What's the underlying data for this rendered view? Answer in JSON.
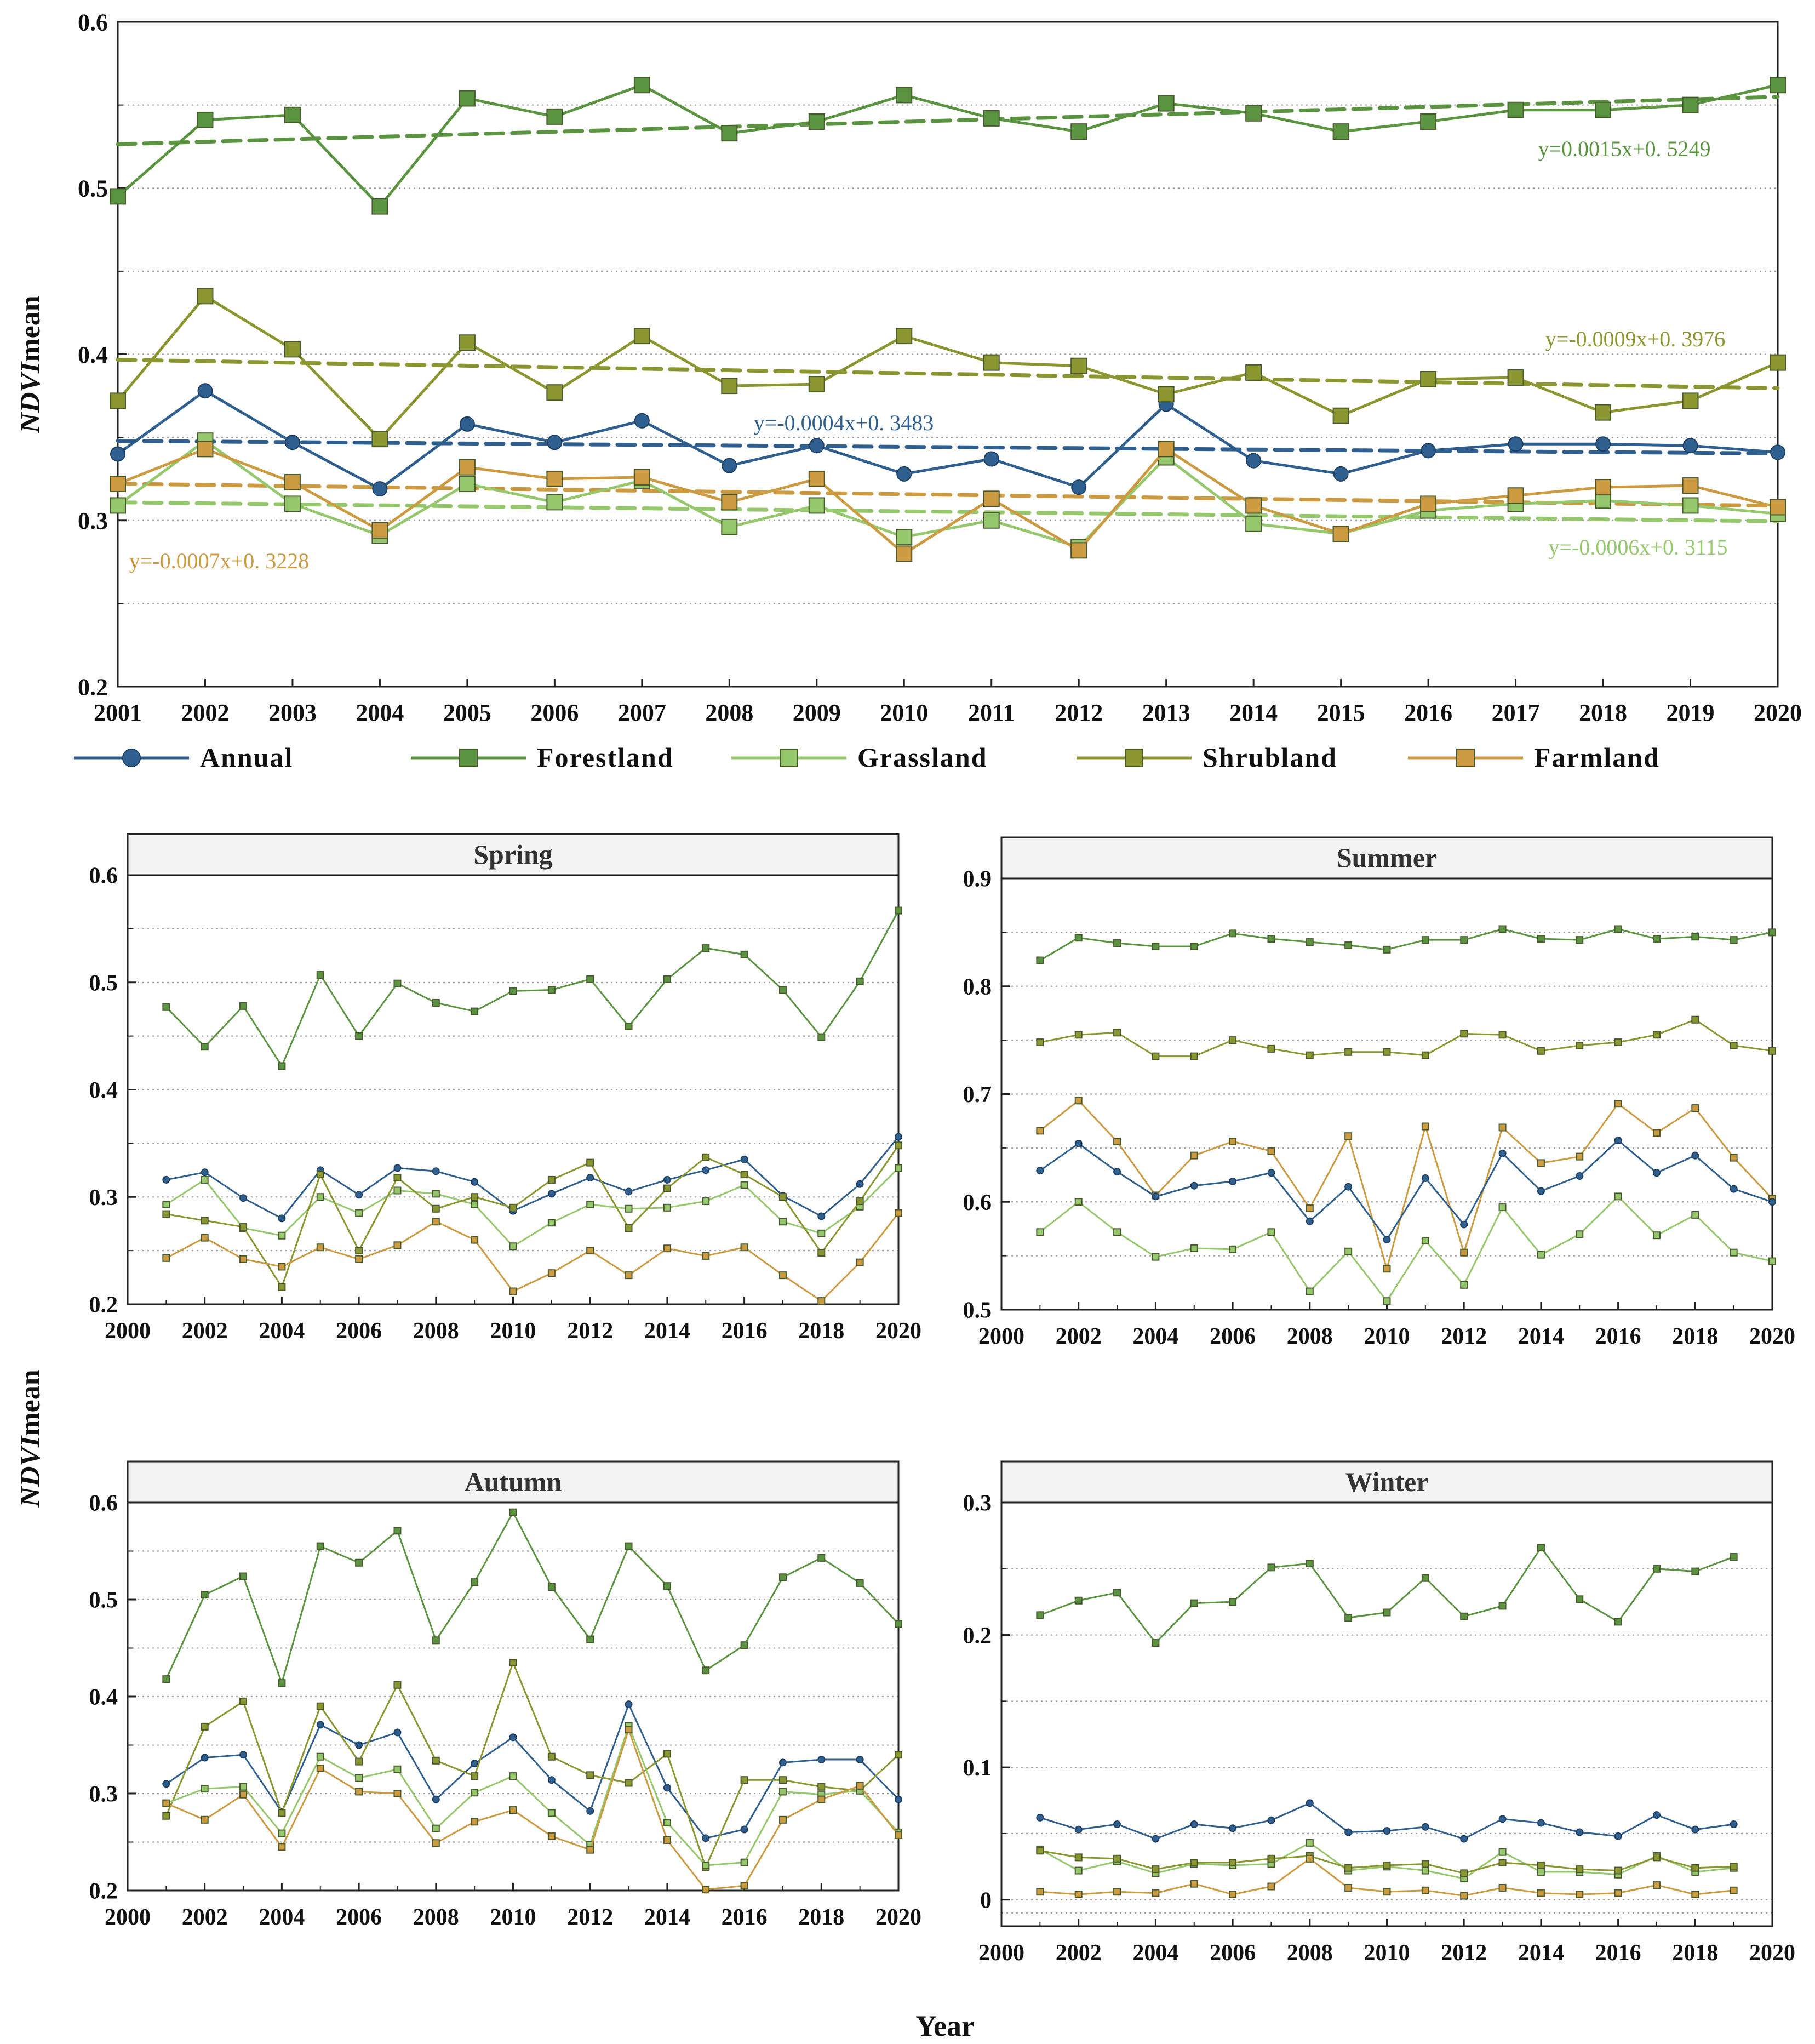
{
  "figure": {
    "y_axis_title_prefix": "NDVI",
    "y_axis_title_suffix": "mean",
    "x_axis_title": "Year"
  },
  "colors": {
    "Annual": "#2f5f8f",
    "Forestland": "#5a9440",
    "Grassland": "#95c86d",
    "Shrubland": "#8c9630",
    "Farmland": "#cc9a40"
  },
  "chart_data": [
    {
      "id": "annual",
      "type": "line",
      "title": "",
      "xlabel": "",
      "ylabel": "NDVImean",
      "xlim": [
        2001,
        2020
      ],
      "ylim": [
        0.2,
        0.6
      ],
      "yticks": [
        0.2,
        0.3,
        0.4,
        0.5,
        0.6
      ],
      "xticks": [
        2001,
        2002,
        2003,
        2004,
        2005,
        2006,
        2007,
        2008,
        2009,
        2010,
        2011,
        2012,
        2013,
        2014,
        2015,
        2016,
        2017,
        2018,
        2019,
        2020
      ],
      "grid": true,
      "legend": [
        "Annual",
        "Forestland",
        "Grassland",
        "Shrubland",
        "Farmland"
      ],
      "x": [
        2001,
        2002,
        2003,
        2004,
        2005,
        2006,
        2007,
        2008,
        2009,
        2010,
        2011,
        2012,
        2013,
        2014,
        2015,
        2016,
        2017,
        2018,
        2019,
        2020
      ],
      "series": [
        {
          "name": "Annual",
          "marker": "circle",
          "values": [
            0.34,
            0.378,
            0.347,
            0.319,
            0.358,
            0.347,
            0.36,
            0.333,
            0.345,
            0.328,
            0.337,
            0.32,
            0.37,
            0.336,
            0.328,
            0.342,
            0.346,
            0.346,
            0.345,
            0.341
          ]
        },
        {
          "name": "Forestland",
          "marker": "square",
          "values": [
            0.495,
            0.541,
            0.544,
            0.489,
            0.554,
            0.543,
            0.562,
            0.533,
            0.54,
            0.556,
            0.542,
            0.534,
            0.551,
            0.545,
            0.534,
            0.54,
            0.547,
            0.547,
            0.55,
            0.562
          ]
        },
        {
          "name": "Grassland",
          "marker": "square",
          "values": [
            0.309,
            0.348,
            0.31,
            0.291,
            0.322,
            0.311,
            0.324,
            0.296,
            0.309,
            0.29,
            0.3,
            0.284,
            0.338,
            0.298,
            0.292,
            0.306,
            0.31,
            0.312,
            0.309,
            0.304
          ]
        },
        {
          "name": "Shrubland",
          "marker": "square",
          "values": [
            0.372,
            0.435,
            0.403,
            0.349,
            0.407,
            0.377,
            0.411,
            0.381,
            0.382,
            0.411,
            0.395,
            0.393,
            0.376,
            0.389,
            0.363,
            0.385,
            0.386,
            0.365,
            0.372,
            0.395
          ]
        },
        {
          "name": "Farmland",
          "marker": "square",
          "values": [
            0.322,
            0.343,
            0.323,
            0.294,
            0.332,
            0.325,
            0.326,
            0.311,
            0.325,
            0.28,
            0.313,
            0.282,
            0.343,
            0.309,
            0.292,
            0.31,
            0.315,
            0.32,
            0.321,
            0.308
          ]
        }
      ],
      "trendlines": [
        {
          "series": "Forestland",
          "label": "y=0.0015x+0. 5249",
          "start": 0.5264,
          "end": 0.5549
        },
        {
          "series": "Shrubland",
          "label": "y=-0.0009x+0. 3976",
          "start": 0.3967,
          "end": 0.3796
        },
        {
          "series": "Annual",
          "label": "y=-0.0004x+0. 3483",
          "start": 0.3479,
          "end": 0.3403
        },
        {
          "series": "Farmland",
          "label": "y=-0.0007x+0. 3228",
          "start": 0.3221,
          "end": 0.3088
        },
        {
          "series": "Grassland",
          "label": "y=-0.0006x+0. 3115",
          "start": 0.3109,
          "end": 0.2995
        }
      ]
    },
    {
      "id": "spring",
      "type": "line",
      "title": "Spring",
      "xlim": [
        2000,
        2020
      ],
      "ylim": [
        0.2,
        0.6
      ],
      "yticks": [
        0.2,
        0.3,
        0.4,
        0.5,
        0.6
      ],
      "xticks": [
        2000,
        2002,
        2004,
        2006,
        2008,
        2010,
        2012,
        2014,
        2016,
        2018,
        2020
      ],
      "grid": true,
      "x": [
        2001,
        2002,
        2003,
        2004,
        2005,
        2006,
        2007,
        2008,
        2009,
        2010,
        2011,
        2012,
        2013,
        2014,
        2015,
        2016,
        2017,
        2018,
        2019,
        2020
      ],
      "series": [
        {
          "name": "Forestland",
          "values": [
            0.477,
            0.44,
            0.478,
            0.422,
            0.507,
            0.45,
            0.499,
            0.481,
            0.473,
            0.492,
            0.493,
            0.503,
            0.459,
            0.503,
            0.532,
            0.526,
            0.493,
            0.449,
            0.501,
            0.567
          ]
        },
        {
          "name": "Annual",
          "values": [
            0.316,
            0.323,
            0.299,
            0.28,
            0.325,
            0.302,
            0.327,
            0.324,
            0.314,
            0.287,
            0.303,
            0.318,
            0.305,
            0.316,
            0.325,
            0.335,
            0.301,
            0.282,
            0.312,
            0.356
          ]
        },
        {
          "name": "Grassland",
          "values": [
            0.293,
            0.316,
            0.271,
            0.264,
            0.3,
            0.285,
            0.306,
            0.303,
            0.293,
            0.254,
            0.276,
            0.293,
            0.289,
            0.29,
            0.296,
            0.311,
            0.277,
            0.266,
            0.291,
            0.327
          ]
        },
        {
          "name": "Shrubland",
          "values": [
            0.284,
            0.278,
            0.272,
            0.216,
            0.321,
            0.25,
            0.318,
            0.289,
            0.3,
            0.29,
            0.316,
            0.332,
            0.271,
            0.308,
            0.337,
            0.321,
            0.3,
            0.248,
            0.296,
            0.348
          ]
        },
        {
          "name": "Farmland",
          "values": [
            0.243,
            0.262,
            0.242,
            0.235,
            0.253,
            0.242,
            0.255,
            0.277,
            0.26,
            0.212,
            0.229,
            0.25,
            0.227,
            0.252,
            0.245,
            0.253,
            0.227,
            0.203,
            0.239,
            0.285
          ]
        }
      ]
    },
    {
      "id": "summer",
      "type": "line",
      "title": "Summer",
      "xlim": [
        2000,
        2020
      ],
      "ylim": [
        0.5,
        0.9
      ],
      "yticks": [
        0.5,
        0.6,
        0.7,
        0.8,
        0.9
      ],
      "xticks": [
        2000,
        2002,
        2004,
        2006,
        2008,
        2010,
        2012,
        2014,
        2016,
        2018,
        2020
      ],
      "grid": true,
      "x": [
        2001,
        2002,
        2003,
        2004,
        2005,
        2006,
        2007,
        2008,
        2009,
        2010,
        2011,
        2012,
        2013,
        2014,
        2015,
        2016,
        2017,
        2018,
        2019,
        2020
      ],
      "series": [
        {
          "name": "Forestland",
          "values": [
            0.824,
            0.845,
            0.84,
            0.837,
            0.837,
            0.849,
            0.844,
            0.841,
            0.838,
            0.834,
            0.843,
            0.843,
            0.853,
            0.844,
            0.843,
            0.853,
            0.844,
            0.846,
            0.843,
            0.85
          ]
        },
        {
          "name": "Shrubland",
          "values": [
            0.748,
            0.755,
            0.757,
            0.735,
            0.735,
            0.75,
            0.742,
            0.736,
            0.739,
            0.739,
            0.736,
            0.756,
            0.755,
            0.74,
            0.745,
            0.748,
            0.755,
            0.769,
            0.745,
            0.74
          ]
        },
        {
          "name": "Farmland",
          "values": [
            0.666,
            0.694,
            0.656,
            0.606,
            0.643,
            0.656,
            0.647,
            0.594,
            0.661,
            0.538,
            0.67,
            0.553,
            0.669,
            0.636,
            0.642,
            0.691,
            0.664,
            0.687,
            0.641,
            0.603
          ]
        },
        {
          "name": "Annual",
          "values": [
            0.629,
            0.654,
            0.628,
            0.605,
            0.615,
            0.619,
            0.627,
            0.582,
            0.614,
            0.565,
            0.622,
            0.579,
            0.645,
            0.61,
            0.624,
            0.657,
            0.627,
            0.643,
            0.612,
            0.6
          ]
        },
        {
          "name": "Grassland",
          "values": [
            0.572,
            0.6,
            0.572,
            0.549,
            0.557,
            0.556,
            0.572,
            0.517,
            0.554,
            0.508,
            0.564,
            0.523,
            0.595,
            0.551,
            0.57,
            0.605,
            0.569,
            0.588,
            0.553,
            0.545
          ]
        }
      ]
    },
    {
      "id": "autumn",
      "type": "line",
      "title": "Autumn",
      "xlim": [
        2000,
        2020
      ],
      "ylim": [
        0.2,
        0.6
      ],
      "yticks": [
        0.2,
        0.3,
        0.4,
        0.5,
        0.6
      ],
      "xticks": [
        2000,
        2002,
        2004,
        2006,
        2008,
        2010,
        2012,
        2014,
        2016,
        2018,
        2020
      ],
      "grid": true,
      "x": [
        2001,
        2002,
        2003,
        2004,
        2005,
        2006,
        2007,
        2008,
        2009,
        2010,
        2011,
        2012,
        2013,
        2014,
        2015,
        2016,
        2017,
        2018,
        2019,
        2020
      ],
      "series": [
        {
          "name": "Forestland",
          "values": [
            0.418,
            0.505,
            0.524,
            0.414,
            0.555,
            0.538,
            0.571,
            0.458,
            0.518,
            0.59,
            0.513,
            0.459,
            0.555,
            0.514,
            0.427,
            0.453,
            0.523,
            0.543,
            0.517,
            0.475
          ]
        },
        {
          "name": "Annual",
          "values": [
            0.31,
            0.337,
            0.34,
            0.281,
            0.371,
            0.35,
            0.363,
            0.294,
            0.331,
            0.358,
            0.314,
            0.282,
            0.392,
            0.306,
            0.254,
            0.263,
            0.332,
            0.335,
            0.335,
            0.294
          ]
        },
        {
          "name": "Shrubland",
          "values": [
            0.277,
            0.369,
            0.395,
            0.28,
            0.39,
            0.333,
            0.412,
            0.334,
            0.318,
            0.435,
            0.338,
            0.319,
            0.311,
            0.341,
            0.224,
            0.314,
            0.314,
            0.307,
            0.303,
            0.34
          ]
        },
        {
          "name": "Grassland",
          "values": [
            0.29,
            0.305,
            0.307,
            0.259,
            0.338,
            0.316,
            0.325,
            0.264,
            0.301,
            0.318,
            0.28,
            0.247,
            0.37,
            0.27,
            0.226,
            0.229,
            0.302,
            0.299,
            0.303,
            0.26
          ]
        },
        {
          "name": "Farmland",
          "values": [
            0.29,
            0.273,
            0.299,
            0.245,
            0.326,
            0.302,
            0.3,
            0.249,
            0.271,
            0.283,
            0.256,
            0.242,
            0.366,
            0.252,
            0.201,
            0.205,
            0.273,
            0.294,
            0.308,
            0.257
          ]
        }
      ]
    },
    {
      "id": "winter",
      "type": "line",
      "title": "Winter",
      "xlim": [
        2000,
        2020
      ],
      "ylim": [
        -0.02,
        0.3
      ],
      "yticks": [
        0,
        0.1,
        0.2,
        0.3
      ],
      "ytick_labels": [
        "0",
        "0.1",
        "0.2",
        "0.3"
      ],
      "xticks": [
        2000,
        2002,
        2004,
        2006,
        2008,
        2010,
        2012,
        2014,
        2016,
        2018,
        2020
      ],
      "grid": true,
      "x": [
        2001,
        2002,
        2003,
        2004,
        2005,
        2006,
        2007,
        2008,
        2009,
        2010,
        2011,
        2012,
        2013,
        2014,
        2015,
        2016,
        2017,
        2018,
        2019
      ],
      "series": [
        {
          "name": "Forestland",
          "values": [
            0.215,
            0.226,
            0.232,
            0.194,
            0.224,
            0.225,
            0.251,
            0.254,
            0.213,
            0.217,
            0.243,
            0.214,
            0.222,
            0.266,
            0.227,
            0.21,
            0.25,
            0.248,
            0.259
          ]
        },
        {
          "name": "Annual",
          "values": [
            0.062,
            0.053,
            0.057,
            0.046,
            0.057,
            0.054,
            0.06,
            0.073,
            0.051,
            0.052,
            0.055,
            0.046,
            0.061,
            0.058,
            0.051,
            0.048,
            0.064,
            0.053,
            0.057
          ]
        },
        {
          "name": "Grassland",
          "values": [
            0.038,
            0.022,
            0.029,
            0.02,
            0.027,
            0.026,
            0.027,
            0.043,
            0.022,
            0.025,
            0.022,
            0.016,
            0.036,
            0.021,
            0.021,
            0.019,
            0.033,
            0.021,
            0.024
          ]
        },
        {
          "name": "Shrubland",
          "values": [
            0.037,
            0.032,
            0.031,
            0.023,
            0.028,
            0.028,
            0.031,
            0.033,
            0.024,
            0.026,
            0.027,
            0.02,
            0.028,
            0.026,
            0.023,
            0.022,
            0.032,
            0.024,
            0.025
          ]
        },
        {
          "name": "Farmland",
          "values": [
            0.006,
            0.004,
            0.006,
            0.005,
            0.012,
            0.004,
            0.01,
            0.031,
            0.009,
            0.006,
            0.007,
            0.003,
            0.009,
            0.005,
            0.004,
            0.005,
            0.011,
            0.004,
            0.007
          ]
        }
      ]
    }
  ]
}
